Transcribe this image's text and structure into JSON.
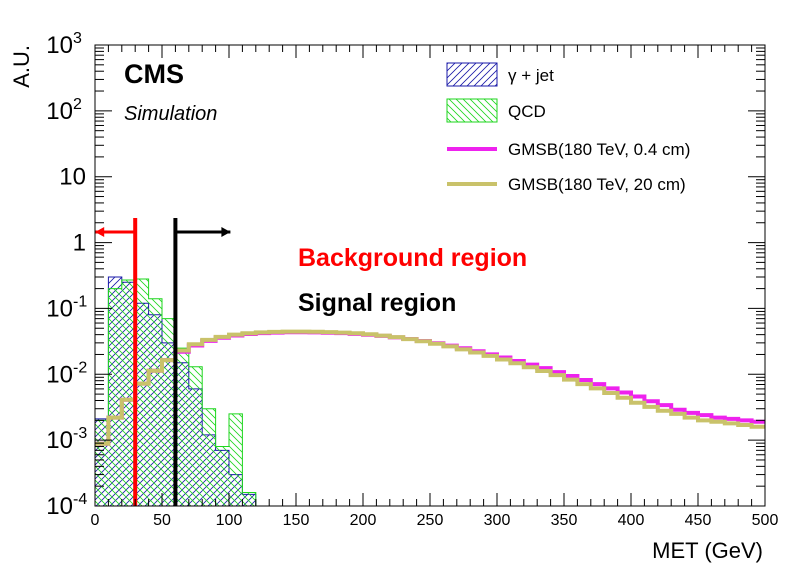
{
  "chart_data": {
    "type": "histogram",
    "title": "",
    "xlabel": "MET (GeV)",
    "ylabel": "A.U.",
    "xlim": [
      0,
      500
    ],
    "ylim": [
      0.0001,
      1000
    ],
    "yscale": "log",
    "bin_width": 10,
    "x_ticks": [
      0,
      50,
      100,
      150,
      200,
      250,
      300,
      350,
      400,
      450,
      500
    ],
    "x_tick_labels": [
      "0",
      "50",
      "100",
      "150",
      "200",
      "250",
      "300",
      "350",
      "400",
      "450",
      "500"
    ],
    "y_ticks": [
      0.0001,
      0.001,
      0.01,
      0.1,
      1,
      10,
      100,
      1000
    ],
    "y_tick_labels": [
      {
        "base": "10",
        "sup": "-4"
      },
      {
        "base": "10",
        "sup": "-3"
      },
      {
        "base": "10",
        "sup": "-2"
      },
      {
        "base": "10",
        "sup": "-1"
      },
      {
        "base": "1",
        "sup": ""
      },
      {
        "base": "10",
        "sup": ""
      },
      {
        "base": "10",
        "sup": "2"
      },
      {
        "base": "10",
        "sup": "3"
      }
    ],
    "cms_label": "CMS",
    "cms_sublabel": "Simulation",
    "legend_position": "top-right",
    "series": [
      {
        "name": "γ + jet",
        "style": "hatched-fill",
        "color": "#1a1aa8",
        "edges": [
          0,
          10,
          20,
          30,
          40,
          50,
          60,
          70,
          80,
          90,
          100,
          110,
          120
        ],
        "values": [
          0.0021,
          0.3,
          0.25,
          0.12,
          0.08,
          0.03,
          0.015,
          0.006,
          0.0012,
          0.0007,
          0.0003,
          0.00015
        ]
      },
      {
        "name": "QCD",
        "style": "hatched-fill",
        "color": "#1ed61e",
        "edges": [
          0,
          10,
          20,
          30,
          40,
          50,
          60,
          70,
          80,
          90,
          100,
          110,
          120
        ],
        "values": [
          0.002,
          0.2,
          0.27,
          0.28,
          0.14,
          0.07,
          0.025,
          0.013,
          0.003,
          0.0008,
          0.0025,
          0.00016
        ]
      },
      {
        "name": "GMSB(180 TeV, 0.4 cm)",
        "style": "step-line",
        "color": "#ee22ee",
        "edges": [
          0,
          10,
          20,
          30,
          40,
          50,
          60,
          70,
          80,
          90,
          100,
          110,
          120,
          130,
          140,
          150,
          160,
          170,
          180,
          190,
          200,
          210,
          220,
          230,
          240,
          250,
          260,
          270,
          280,
          290,
          300,
          310,
          320,
          330,
          340,
          350,
          360,
          370,
          380,
          390,
          400,
          410,
          420,
          430,
          440,
          450,
          460,
          470,
          480,
          490,
          500
        ],
        "values": [
          0.00088,
          0.0022,
          0.0041,
          0.0072,
          0.0113,
          0.0164,
          0.022,
          0.0274,
          0.0321,
          0.0358,
          0.0388,
          0.0409,
          0.0422,
          0.043,
          0.0434,
          0.0434,
          0.0432,
          0.0428,
          0.0421,
          0.0411,
          0.0399,
          0.0383,
          0.0364,
          0.0343,
          0.032,
          0.0296,
          0.0272,
          0.0248,
          0.0224,
          0.0201,
          0.018,
          0.0159,
          0.014,
          0.0124,
          0.0108,
          0.0094,
          0.0082,
          0.0071,
          0.0061,
          0.0053,
          0.0046,
          0.0039,
          0.0034,
          0.0029,
          0.0026,
          0.0024,
          0.0022,
          0.0021,
          0.002,
          0.0019
        ]
      },
      {
        "name": "GMSB(180 TeV, 20 cm)",
        "style": "step-line",
        "color": "#c9c26a",
        "edges": [
          0,
          10,
          20,
          30,
          40,
          50,
          60,
          70,
          80,
          90,
          100,
          110,
          120,
          130,
          140,
          150,
          160,
          170,
          180,
          190,
          200,
          210,
          220,
          230,
          240,
          250,
          260,
          270,
          280,
          290,
          300,
          310,
          320,
          330,
          340,
          350,
          360,
          370,
          380,
          390,
          400,
          410,
          420,
          430,
          440,
          450,
          460,
          470,
          480,
          490,
          500
        ],
        "values": [
          0.00088,
          0.0022,
          0.0041,
          0.0072,
          0.0113,
          0.0164,
          0.023,
          0.0286,
          0.0333,
          0.037,
          0.04,
          0.042,
          0.0432,
          0.044,
          0.0444,
          0.0444,
          0.0442,
          0.0437,
          0.043,
          0.042,
          0.0405,
          0.0387,
          0.0366,
          0.0342,
          0.0317,
          0.0291,
          0.0265,
          0.0239,
          0.0214,
          0.019,
          0.0168,
          0.0147,
          0.0128,
          0.0112,
          0.0097,
          0.0083,
          0.0071,
          0.0061,
          0.0052,
          0.0044,
          0.0037,
          0.0032,
          0.0028,
          0.0025,
          0.0022,
          0.002,
          0.0019,
          0.0018,
          0.0017,
          0.0016
        ]
      }
    ],
    "annotations": [
      {
        "text": "Background region",
        "color": "#ff0000",
        "cut_value": 30,
        "direction": "left"
      },
      {
        "text": "Signal region",
        "color": "#000000",
        "cut_value": 60,
        "direction": "right"
      }
    ]
  }
}
